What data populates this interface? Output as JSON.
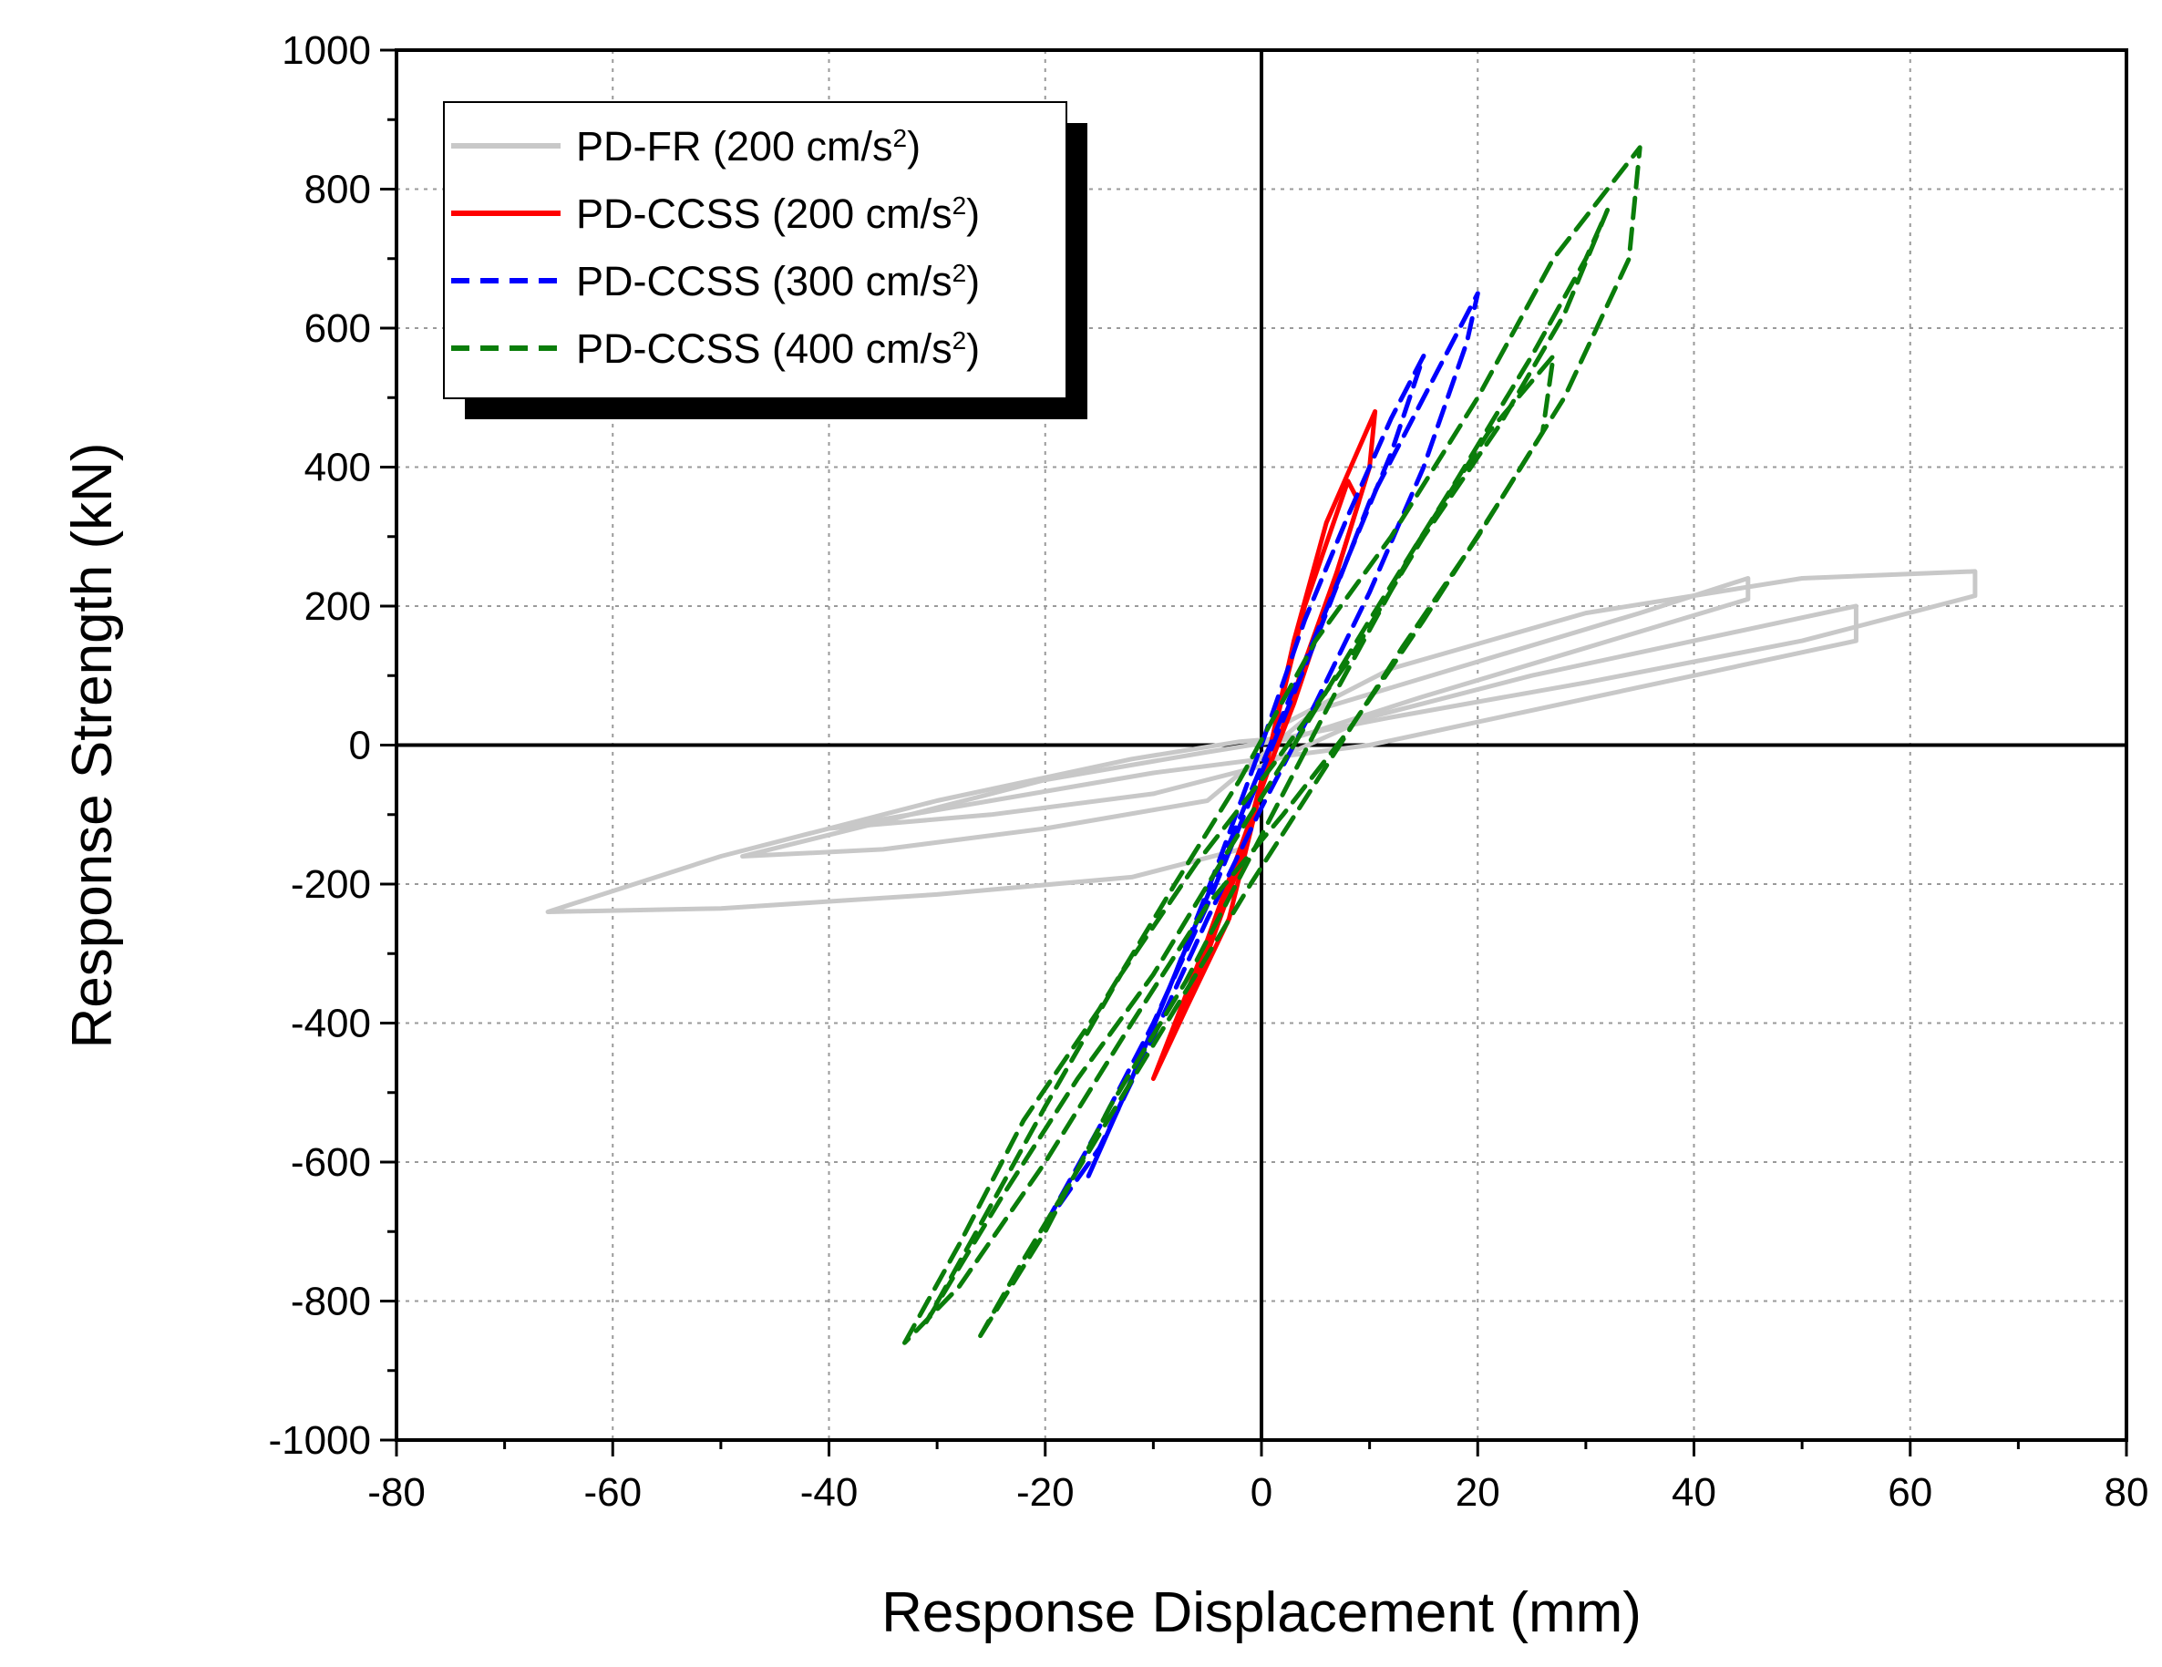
{
  "chart_data": {
    "type": "line",
    "title": "",
    "xlabel": "Response Displacement (mm)",
    "ylabel": "Response Strength (kN)",
    "xlim": [
      -80,
      80
    ],
    "ylim": [
      -1000,
      1000
    ],
    "x_major_ticks": [
      -80,
      -60,
      -40,
      -20,
      0,
      20,
      40,
      60,
      80
    ],
    "y_major_ticks": [
      -1000,
      -800,
      -600,
      -400,
      -200,
      0,
      200,
      400,
      600,
      800,
      1000
    ],
    "x_tick_labels": [
      "-80",
      "-60",
      "-40",
      "-20",
      "0",
      "20",
      "40",
      "60",
      "80"
    ],
    "y_tick_labels": [
      "-1000",
      "-800",
      "-600",
      "-400",
      "-200",
      "0",
      "200",
      "400",
      "600",
      "800",
      "1000"
    ],
    "grid": true,
    "legend_position": "top-left",
    "series": [
      {
        "name": "PD-FR (200 cm/s2)",
        "legend_main": "PD-FR (200 cm/s",
        "legend_sup": "2",
        "legend_close": ")",
        "color": "#c8c8c8",
        "dash": "solid",
        "loops": [
          {
            "x": [
              -66,
              -50,
              -30,
              -12,
              -2,
              2,
              12,
              30,
              50,
              66,
              66,
              50,
              30,
              12,
              2,
              -2,
              -12,
              -30,
              -50,
              -66
            ],
            "y": [
              -240,
              -235,
              -215,
              -190,
              -150,
              30,
              110,
              190,
              240,
              250,
              215,
              150,
              90,
              40,
              10,
              5,
              -20,
              -80,
              -160,
              -240
            ]
          },
          {
            "x": [
              -48,
              -35,
              -20,
              -5,
              5,
              20,
              35,
              45,
              45,
              30,
              15,
              3,
              -5,
              -20,
              -35,
              -48
            ],
            "y": [
              -160,
              -150,
              -120,
              -80,
              50,
              120,
              190,
              240,
              210,
              140,
              70,
              10,
              -10,
              -50,
              -110,
              -160
            ]
          },
          {
            "x": [
              -40,
              -25,
              -10,
              0,
              10,
              25,
              40,
              55,
              55,
              40,
              25,
              10,
              0,
              -10,
              -25,
              -40
            ],
            "y": [
              -120,
              -100,
              -70,
              -30,
              40,
              100,
              150,
              200,
              150,
              100,
              50,
              0,
              -20,
              -40,
              -80,
              -120
            ]
          }
        ]
      },
      {
        "name": "PD-CCSS (200 cm/s2)",
        "legend_main": "PD-CCSS (200 cm/s",
        "legend_sup": "2",
        "legend_close": ")",
        "color": "#ff0000",
        "dash": "solid",
        "loops": [
          {
            "x": [
              -10,
              -7,
              -3,
              0,
              3,
              6,
              10.5,
              10,
              7,
              4,
              1,
              -2,
              -5,
              -8,
              -10
            ],
            "y": [
              -480,
              -380,
              -250,
              -60,
              150,
              320,
              480,
              400,
              250,
              120,
              -20,
              -150,
              -280,
              -400,
              -480
            ]
          },
          {
            "x": [
              -8,
              -5,
              -2,
              1,
              4,
              8,
              9,
              6,
              3,
              0,
              -3,
              -6,
              -8
            ],
            "y": [
              -400,
              -300,
              -170,
              10,
              200,
              380,
              350,
              200,
              60,
              -60,
              -200,
              -330,
              -400
            ]
          }
        ]
      },
      {
        "name": "PD-CCSS (300 cm/s2)",
        "legend_main": "PD-CCSS (300 cm/s",
        "legend_sup": "2",
        "legend_close": ")",
        "color": "#0000ff",
        "dash": "dashed",
        "loops": [
          {
            "x": [
              -20,
              -15,
              -10,
              -5,
              0,
              5,
              10,
              15,
              20,
              19,
              15,
              10,
              5,
              0,
              -5,
              -10,
              -15,
              -20
            ],
            "y": [
              -690,
              -550,
              -400,
              -230,
              -40,
              150,
              350,
              500,
              650,
              580,
              400,
              220,
              60,
              -90,
              -250,
              -420,
              -580,
              -690
            ]
          },
          {
            "x": [
              -16,
              -12,
              -8,
              -4,
              0,
              4,
              8,
              12,
              15,
              12,
              8,
              4,
              0,
              -4,
              -8,
              -12,
              -16
            ],
            "y": [
              -620,
              -480,
              -330,
              -170,
              0,
              180,
              330,
              470,
              560,
              420,
              270,
              120,
              -30,
              -180,
              -330,
              -480,
              -620
            ]
          }
        ]
      },
      {
        "name": "PD-CCSS (400 cm/s2)",
        "legend_main": "PD-CCSS (400 cm/s",
        "legend_sup": "2",
        "legend_close": ")",
        "color": "#0a7d0a",
        "dash": "dashed",
        "loops": [
          {
            "x": [
              -33,
              -28,
              -22,
              -15,
              -8,
              -2,
              5,
              12,
              20,
              27,
              31,
              35,
              34,
              28,
              22,
              15,
              8,
              2,
              -5,
              -12,
              -20,
              -28,
              -33
            ],
            "y": [
              -860,
              -720,
              -540,
              -380,
              -200,
              -50,
              150,
              300,
              500,
              700,
              780,
              860,
              700,
              500,
              350,
              180,
              20,
              -100,
              -230,
              -400,
              -600,
              -780,
              -860
            ]
          },
          {
            "x": [
              -31,
              -24,
              -17,
              -10,
              -3,
              3,
              10,
              18,
              25,
              30,
              32,
              28,
              22,
              15,
              8,
              1,
              -6,
              -13,
              -20,
              -26,
              -31
            ],
            "y": [
              -830,
              -650,
              -480,
              -330,
              -150,
              0,
              180,
              380,
              560,
              700,
              770,
              620,
              460,
              300,
              120,
              -30,
              -170,
              -330,
              -520,
              -690,
              -830
            ]
          },
          {
            "x": [
              -26,
              -20,
              -14,
              -7,
              0,
              7,
              14,
              21,
              27,
              26,
              20,
              13,
              6,
              -1,
              -8,
              -15,
              -22,
              -26
            ],
            "y": [
              -850,
              -700,
              -520,
              -340,
              -130,
              80,
              280,
              450,
              560,
              450,
              300,
              140,
              -30,
              -200,
              -380,
              -560,
              -740,
              -850
            ]
          }
        ]
      }
    ]
  }
}
